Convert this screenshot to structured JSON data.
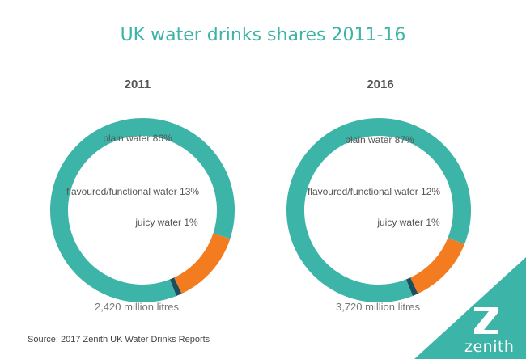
{
  "title": "UK water drinks shares 2011-16",
  "source": "Source: 2017 Zenith UK Water Drinks Reports",
  "brand": {
    "name": "zenith",
    "icon": "zenith-z-logo"
  },
  "colors": {
    "plain": "#3cb4a8",
    "flavoured": "#f47c20",
    "juicy": "#1c4e5e",
    "corner": "#3cb4a8"
  },
  "chart_data": [
    {
      "type": "pie",
      "title": "2011",
      "series": [
        {
          "name": "plain water",
          "value": 86,
          "label": "plain water 86%"
        },
        {
          "name": "flavoured/functional water",
          "value": 13,
          "label": "flavoured/functional water 13%"
        },
        {
          "name": "juicy water",
          "value": 1,
          "label": "juicy water 1%"
        }
      ],
      "total": "2,420 million litres"
    },
    {
      "type": "pie",
      "title": "2016",
      "series": [
        {
          "name": "plain water",
          "value": 87,
          "label": "plain water 87%"
        },
        {
          "name": "flavoured/functional water",
          "value": 12,
          "label": "flavoured/functional water 12%"
        },
        {
          "name": "juicy water",
          "value": 1,
          "label": "juicy water 1%"
        }
      ],
      "total": "3,720 million litres"
    }
  ]
}
